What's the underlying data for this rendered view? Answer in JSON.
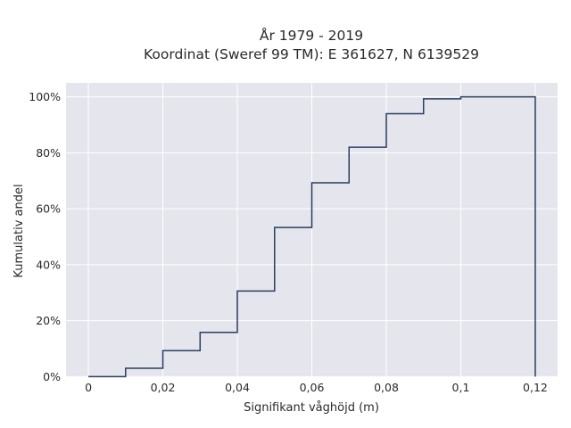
{
  "chart_data": {
    "type": "line",
    "subtype": "cumulative-step",
    "title_line1": "År 1979 - 2019",
    "title_line2": "Koordinat (Sweref 99 TM): E 361627, N 6139529",
    "xlabel": "Signifikant våghöjd (m)",
    "ylabel": "Kumulativ andel",
    "xlim": [
      -0.006,
      0.126
    ],
    "ylim": [
      -0.002,
      1.05
    ],
    "x_ticks": [
      0,
      0.02,
      0.04,
      0.06,
      0.08,
      0.1,
      0.12
    ],
    "x_tick_labels": [
      "0",
      "0,02",
      "0,04",
      "0,06",
      "0,08",
      "0,1",
      "0,12"
    ],
    "y_ticks": [
      0,
      0.2,
      0.4,
      0.6,
      0.8,
      1.0
    ],
    "y_tick_labels": [
      "0%",
      "20%",
      "40%",
      "60%",
      "80%",
      "100%"
    ],
    "grid": true,
    "line_color": "#2a3f5f",
    "plot_bg": "#e5e5ee",
    "x": [
      0,
      0.01,
      0.02,
      0.03,
      0.04,
      0.05,
      0.06,
      0.07,
      0.08,
      0.09,
      0.1,
      0.12,
      0.12
    ],
    "y": [
      0,
      0.03,
      0.093,
      0.158,
      0.306,
      0.533,
      0.693,
      0.82,
      0.94,
      0.993,
      1.0,
      1.0,
      0
    ]
  }
}
